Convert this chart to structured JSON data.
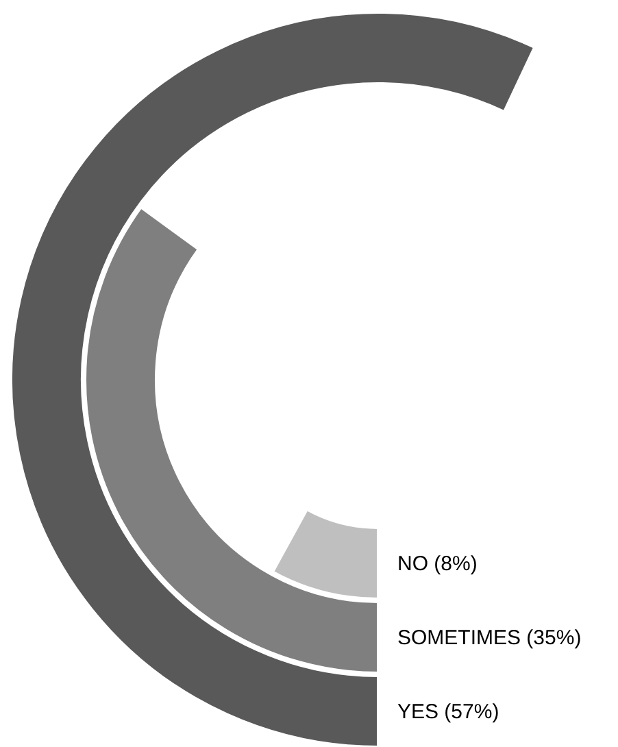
{
  "chart_data": {
    "type": "other",
    "categories": [
      "NO",
      "SOMETIMES",
      "YES"
    ],
    "values": [
      8,
      35,
      57
    ],
    "value_labels": [
      "(8%)",
      "(35%)",
      "(57%)"
    ],
    "colors": [
      "#bfbfbf",
      "#7f7f7f",
      "#595959"
    ]
  }
}
